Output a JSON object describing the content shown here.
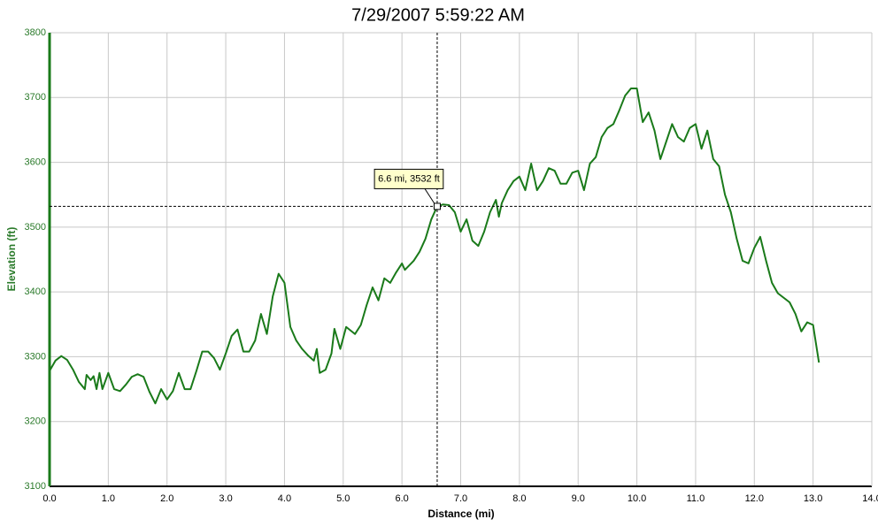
{
  "chart_data": {
    "type": "line",
    "title": "7/29/2007 5:59:22 AM",
    "x_label": "Distance (mi)",
    "y_label": "Elevation (ft)",
    "x": [
      0.0,
      0.1,
      0.2,
      0.3,
      0.4,
      0.5,
      0.6,
      0.63,
      0.7,
      0.75,
      0.8,
      0.85,
      0.9,
      1.0,
      1.1,
      1.2,
      1.3,
      1.4,
      1.5,
      1.6,
      1.7,
      1.8,
      1.9,
      2.0,
      2.1,
      2.2,
      2.3,
      2.4,
      2.5,
      2.6,
      2.7,
      2.8,
      2.9,
      3.0,
      3.1,
      3.2,
      3.3,
      3.4,
      3.5,
      3.6,
      3.7,
      3.8,
      3.9,
      4.0,
      4.1,
      4.2,
      4.3,
      4.4,
      4.5,
      4.55,
      4.6,
      4.7,
      4.8,
      4.85,
      4.95,
      5.05,
      5.2,
      5.3,
      5.4,
      5.5,
      5.6,
      5.7,
      5.8,
      5.9,
      6.0,
      6.05,
      6.2,
      6.3,
      6.4,
      6.5,
      6.6,
      6.7,
      6.8,
      6.9,
      7.0,
      7.1,
      7.2,
      7.3,
      7.4,
      7.5,
      7.6,
      7.65,
      7.7,
      7.8,
      7.9,
      8.0,
      8.1,
      8.2,
      8.3,
      8.4,
      8.5,
      8.6,
      8.7,
      8.8,
      8.9,
      9.0,
      9.1,
      9.2,
      9.3,
      9.4,
      9.5,
      9.6,
      9.7,
      9.8,
      9.9,
      10.0,
      10.1,
      10.2,
      10.3,
      10.4,
      10.5,
      10.6,
      10.7,
      10.8,
      10.9,
      11.0,
      11.1,
      11.2,
      11.3,
      11.4,
      11.5,
      11.6,
      11.7,
      11.8,
      11.9,
      12.0,
      12.1,
      12.2,
      12.3,
      12.4,
      12.5,
      12.6,
      12.7,
      12.8,
      12.9,
      13.0,
      13.1
    ],
    "series": [
      {
        "name": "Elevation",
        "color": "#1a7a1a",
        "values": [
          3278,
          3294,
          3301,
          3295,
          3280,
          3261,
          3250,
          3272,
          3264,
          3270,
          3250,
          3275,
          3250,
          3275,
          3250,
          3247,
          3257,
          3269,
          3273,
          3269,
          3246,
          3228,
          3250,
          3234,
          3247,
          3275,
          3250,
          3250,
          3278,
          3308,
          3308,
          3298,
          3280,
          3305,
          3332,
          3342,
          3308,
          3308,
          3325,
          3366,
          3335,
          3393,
          3428,
          3414,
          3346,
          3325,
          3312,
          3302,
          3294,
          3312,
          3275,
          3280,
          3305,
          3343,
          3312,
          3346,
          3335,
          3349,
          3380,
          3407,
          3387,
          3421,
          3414,
          3430,
          3444,
          3434,
          3448,
          3462,
          3482,
          3512,
          3532,
          3535,
          3534,
          3523,
          3493,
          3512,
          3479,
          3471,
          3493,
          3523,
          3542,
          3516,
          3537,
          3557,
          3571,
          3578,
          3557,
          3598,
          3557,
          3571,
          3591,
          3587,
          3567,
          3567,
          3584,
          3587,
          3557,
          3598,
          3608,
          3639,
          3653,
          3659,
          3680,
          3703,
          3714,
          3714,
          3662,
          3677,
          3649,
          3605,
          3632,
          3659,
          3639,
          3632,
          3653,
          3659,
          3621,
          3649,
          3605,
          3594,
          3550,
          3523,
          3482,
          3448,
          3444,
          3468,
          3485,
          3448,
          3414,
          3398,
          3391,
          3384,
          3366,
          3339,
          3353,
          3349,
          3291
        ]
      }
    ],
    "xlim": [
      0,
      14
    ],
    "ylim": [
      3100,
      3800
    ],
    "xticks": [
      {
        "value": 0,
        "label": "0.0"
      },
      {
        "value": 1,
        "label": "1.0"
      },
      {
        "value": 2,
        "label": "2.0"
      },
      {
        "value": 3,
        "label": "3.0"
      },
      {
        "value": 4,
        "label": "4.0"
      },
      {
        "value": 5,
        "label": "5.0"
      },
      {
        "value": 6,
        "label": "6.0"
      },
      {
        "value": 7,
        "label": "7.0"
      },
      {
        "value": 8,
        "label": "8.0"
      },
      {
        "value": 9,
        "label": "9.0"
      },
      {
        "value": 10,
        "label": "10.0"
      },
      {
        "value": 11,
        "label": "11.0"
      },
      {
        "value": 12,
        "label": "12.0"
      },
      {
        "value": 13,
        "label": "13.0"
      },
      {
        "value": 14,
        "label": "14.0"
      }
    ],
    "yticks": [
      3100,
      3200,
      3300,
      3400,
      3500,
      3600,
      3700,
      3800
    ],
    "grid": true,
    "crosshair": {
      "x": 6.6,
      "y": 3532,
      "label": "6.6 mi, 3532 ft"
    }
  }
}
